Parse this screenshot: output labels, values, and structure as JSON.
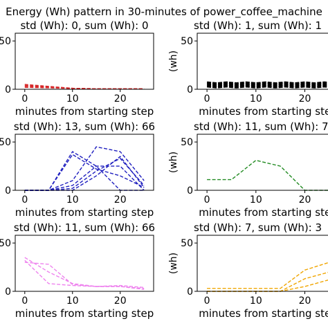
{
  "figure_title": "Energy (Wh) pattern in 30-minutes of power_coffee_machine",
  "chart_data": [
    {
      "type": "line",
      "title": "std (Wh): 0, sum (Wh): 0",
      "xlabel": "minutes from starting step",
      "ylabel": "",
      "xticks": [
        "0",
        "10",
        "20"
      ],
      "yticks": [
        "0",
        "50"
      ],
      "xlim": [
        -2,
        27
      ],
      "ylim": [
        0,
        58
      ],
      "color": "#d62728",
      "series": [
        {
          "x": [
            0,
            5,
            10,
            15,
            20,
            25
          ],
          "y": [
            5,
            3,
            1,
            0.5,
            0.5,
            0.5
          ]
        },
        {
          "x": [
            0,
            5,
            10,
            15,
            20,
            25
          ],
          "y": [
            4,
            2.5,
            1,
            0.5,
            0.5,
            0.5
          ]
        },
        {
          "x": [
            0,
            5,
            10,
            15,
            20,
            25
          ],
          "y": [
            3,
            2,
            1,
            0.5,
            0.5,
            0.5
          ]
        },
        {
          "x": [
            0,
            5,
            10,
            15,
            20,
            25
          ],
          "y": [
            2,
            1.5,
            0.8,
            0.5,
            0.5,
            0.5
          ]
        }
      ]
    },
    {
      "type": "line",
      "title": "std (Wh): 1, sum (Wh): 1",
      "xlabel": "minutes from starting step",
      "ylabel": "(wh)",
      "xticks": [
        "0",
        "10",
        "20"
      ],
      "yticks": [
        "0",
        "50"
      ],
      "xlim": [
        -2,
        27
      ],
      "ylim": [
        0,
        58
      ],
      "color": "#000000",
      "series": [
        {
          "x": [
            0,
            2,
            4,
            6,
            8,
            10,
            12,
            14,
            16,
            18,
            20,
            22,
            24,
            26
          ],
          "y": [
            7,
            6,
            7,
            6,
            7,
            6,
            7,
            6,
            7,
            6,
            7,
            6,
            7,
            6
          ]
        },
        {
          "x": [
            0,
            2,
            4,
            6,
            8,
            10,
            12,
            14,
            16,
            18,
            20,
            22,
            24,
            26
          ],
          "y": [
            5,
            4,
            5,
            4,
            5,
            4,
            5,
            4,
            5,
            4,
            5,
            4,
            5,
            4
          ]
        },
        {
          "x": [
            0,
            2,
            4,
            6,
            8,
            10,
            12,
            14,
            16,
            18,
            20,
            22,
            24,
            26
          ],
          "y": [
            3,
            2,
            3,
            2,
            3,
            2,
            3,
            2,
            3,
            2,
            3,
            2,
            3,
            2
          ]
        }
      ]
    },
    {
      "type": "line",
      "title": "std (Wh): 13, sum (Wh): 66",
      "xlabel": "minutes from starting step",
      "ylabel": "",
      "xticks": [
        "0",
        "10",
        "20"
      ],
      "yticks": [
        "0",
        "50"
      ],
      "xlim": [
        -2,
        27
      ],
      "ylim": [
        0,
        58
      ],
      "color": "#1f1fbf",
      "series": [
        {
          "x": [
            0,
            5,
            10,
            15,
            20,
            25
          ],
          "y": [
            0,
            0,
            40,
            25,
            0,
            0
          ]
        },
        {
          "x": [
            0,
            5,
            10,
            15,
            20,
            25
          ],
          "y": [
            0,
            0,
            37,
            22,
            15,
            3
          ]
        },
        {
          "x": [
            0,
            5,
            10,
            15,
            20,
            25
          ],
          "y": [
            0,
            0,
            10,
            45,
            40,
            10
          ]
        },
        {
          "x": [
            0,
            5,
            10,
            15,
            20,
            25
          ],
          "y": [
            0,
            0,
            2,
            20,
            33,
            5
          ]
        },
        {
          "x": [
            0,
            5,
            10,
            15,
            20,
            25
          ],
          "y": [
            0,
            0,
            0,
            15,
            35,
            3
          ]
        },
        {
          "x": [
            0,
            5,
            10,
            15,
            20,
            25
          ],
          "y": [
            0,
            0,
            5,
            25,
            25,
            0
          ]
        }
      ]
    },
    {
      "type": "line",
      "title": "std (Wh): 11, sum (Wh): 7",
      "xlabel": "minutes from starting step",
      "ylabel": "(wh)",
      "xticks": [
        "0",
        "10",
        "20"
      ],
      "yticks": [
        "0",
        "50"
      ],
      "xlim": [
        -2,
        27
      ],
      "ylim": [
        0,
        58
      ],
      "color": "#228b22",
      "series": [
        {
          "x": [
            0,
            5,
            10,
            15,
            20,
            25
          ],
          "y": [
            11,
            11,
            31,
            25,
            0,
            0
          ]
        }
      ]
    },
    {
      "type": "line",
      "title": "std (Wh): 11, sum (Wh): 66",
      "xlabel": "minutes from starting step",
      "ylabel": "",
      "xticks": [
        "0",
        "10",
        "20"
      ],
      "yticks": [
        "0",
        "50"
      ],
      "xlim": [
        -2,
        27
      ],
      "ylim": [
        0,
        58
      ],
      "color": "#ee82ee",
      "series": [
        {
          "x": [
            0,
            5,
            10,
            15,
            20,
            25
          ],
          "y": [
            35,
            20,
            8,
            5,
            5,
            3
          ]
        },
        {
          "x": [
            0,
            5,
            10,
            15,
            20,
            25
          ],
          "y": [
            32,
            8,
            6,
            5,
            6,
            4
          ]
        },
        {
          "x": [
            0,
            5,
            10,
            15,
            20,
            25
          ],
          "y": [
            30,
            28,
            7,
            5,
            5,
            2
          ]
        }
      ]
    },
    {
      "type": "line",
      "title": "std (Wh): 7, sum (Wh): 3",
      "xlabel": "minutes from starting step",
      "ylabel": "(wh)",
      "xticks": [
        "0",
        "10",
        "20"
      ],
      "yticks": [
        "0",
        "50"
      ],
      "xlim": [
        -2,
        27
      ],
      "ylim": [
        0,
        58
      ],
      "color": "#f0a500",
      "series": [
        {
          "x": [
            0,
            5,
            10,
            15,
            20,
            25
          ],
          "y": [
            3,
            3,
            3,
            3,
            22,
            30
          ]
        },
        {
          "x": [
            0,
            5,
            10,
            15,
            20,
            25
          ],
          "y": [
            0,
            0,
            0,
            0,
            13,
            20
          ]
        },
        {
          "x": [
            0,
            5,
            10,
            15,
            20,
            25
          ],
          "y": [
            0,
            0,
            0,
            0,
            5,
            12
          ]
        }
      ]
    }
  ]
}
